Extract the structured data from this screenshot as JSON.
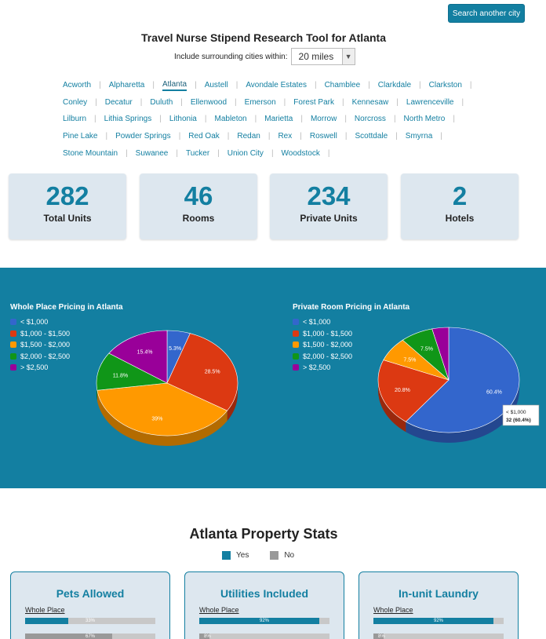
{
  "header": {
    "search_button": "Search another city",
    "title": "Travel Nurse Stipend Research Tool for Atlanta",
    "radius_label": "Include surrounding cities within:",
    "radius_value": "20 miles"
  },
  "cities": [
    [
      "Acworth",
      "Alpharetta",
      "Atlanta",
      "Austell",
      "Avondale Estates",
      "Chamblee",
      "Clarkdale",
      "Clarkston"
    ],
    [
      "Conley",
      "Decatur",
      "Duluth",
      "Ellenwood",
      "Emerson",
      "Forest Park",
      "Kennesaw",
      "Lawrenceville"
    ],
    [
      "Lilburn",
      "Lithia Springs",
      "Lithonia",
      "Mableton",
      "Marietta",
      "Morrow",
      "Norcross",
      "North Metro"
    ],
    [
      "Pine Lake",
      "Powder Springs",
      "Red Oak",
      "Redan",
      "Rex",
      "Roswell",
      "Scottdale",
      "Smyrna"
    ],
    [
      "Stone Mountain",
      "Suwanee",
      "Tucker",
      "Union City",
      "Woodstock"
    ]
  ],
  "active_city": "Atlanta",
  "stats": [
    {
      "value": "282",
      "label": "Total Units"
    },
    {
      "value": "46",
      "label": "Rooms"
    },
    {
      "value": "234",
      "label": "Private Units"
    },
    {
      "value": "2",
      "label": "Hotels"
    }
  ],
  "chart_data": [
    {
      "type": "pie",
      "title": "Whole Place Pricing in Atlanta",
      "categories": [
        "< $1,000",
        "$1,000 - $1,500",
        "$1,500 - $2,000",
        "$2,000 - $2,500",
        "> $2,500"
      ],
      "values": [
        5.3,
        28.5,
        39,
        11.8,
        15.4
      ],
      "labels": [
        "5.3%",
        "28.5%",
        "39%",
        "11.8%",
        "15.4%"
      ],
      "colors": [
        "#3366cc",
        "#dc3912",
        "#ff9900",
        "#109618",
        "#990099"
      ],
      "legend": "left"
    },
    {
      "type": "pie",
      "title": "Private Room Pricing in Atlanta",
      "categories": [
        "< $1,000",
        "$1,000 - $1,500",
        "$1,500 - $2,000",
        "$2,000 - $2,500",
        "> $2,500"
      ],
      "values": [
        60.4,
        20.8,
        7.5,
        7.5,
        3.8
      ],
      "labels": [
        "60.4%",
        "20.8%",
        "7.5%",
        "7.5%",
        ""
      ],
      "colors": [
        "#3366cc",
        "#dc3912",
        "#ff9900",
        "#109618",
        "#990099"
      ],
      "legend": "left",
      "tooltip": {
        "line1": "< $1,000",
        "line2": "32 (60.4%)"
      }
    }
  ],
  "property_stats": {
    "title": "Atlanta Property Stats",
    "legend": [
      {
        "label": "Yes",
        "color": "#137fa1"
      },
      {
        "label": "No",
        "color": "#999999"
      }
    ],
    "cards": [
      {
        "title": "Pets Allowed",
        "sub": "Whole Place",
        "yes": 33,
        "yes_label": "33%",
        "no": 67,
        "no_label": "67%"
      },
      {
        "title": "Utilities Included",
        "sub": "Whole Place",
        "yes": 92,
        "yes_label": "92%",
        "no": 8,
        "no_label": "8%"
      },
      {
        "title": "In-unit Laundry",
        "sub": "Whole Place",
        "yes": 92,
        "yes_label": "92%",
        "no": 8,
        "no_label": "8%"
      }
    ]
  }
}
